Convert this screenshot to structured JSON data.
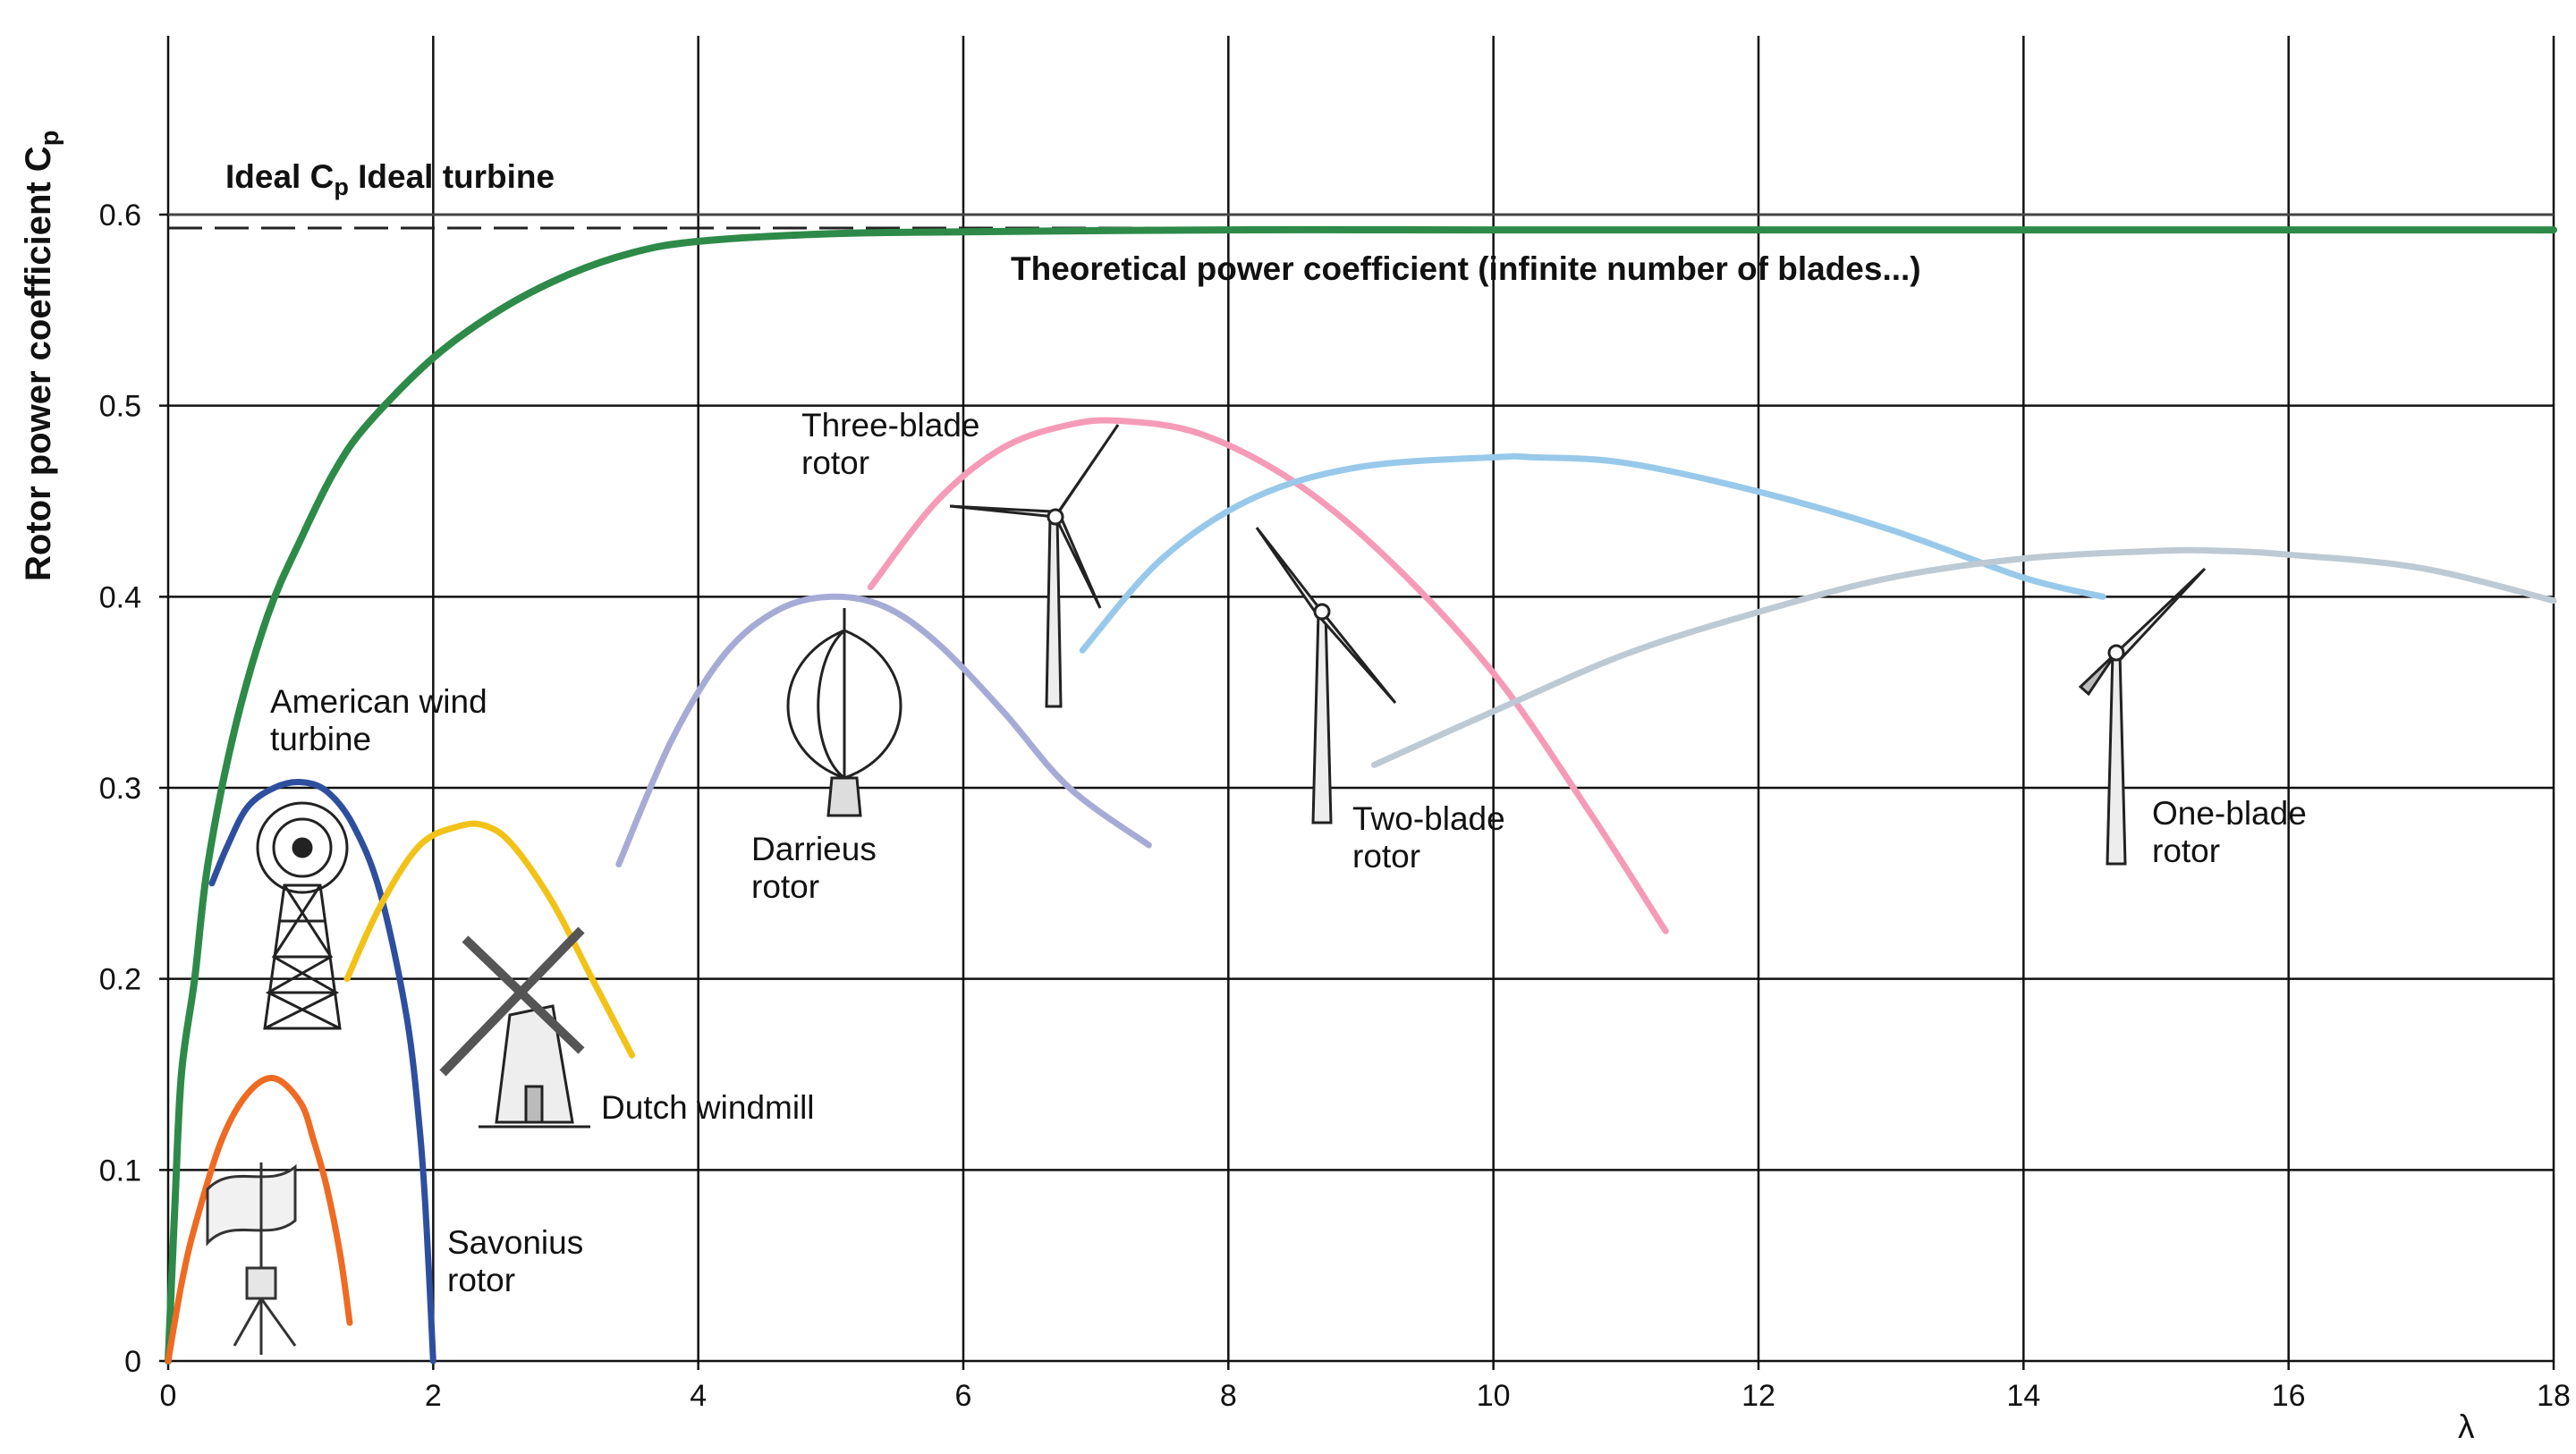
{
  "chart_data": {
    "type": "line",
    "xlabel": "λ",
    "ylabel": "Rotor power coefficient C",
    "ylabel_sub": "p",
    "xlim": [
      0,
      18
    ],
    "ylim": [
      0,
      0.6
    ],
    "x_ticks": [
      0,
      2,
      4,
      6,
      8,
      10,
      12,
      14,
      16,
      18
    ],
    "y_ticks": [
      0,
      0.1,
      0.2,
      0.3,
      0.4,
      0.5,
      0.6
    ],
    "y_tick_labels": [
      "0",
      "0.1",
      "0.2",
      "0.3",
      "0.4",
      "0.5",
      "0.6"
    ],
    "grid": true,
    "reference_lines": [
      {
        "y": 0.593,
        "style": "dashed",
        "color": "#222222"
      },
      {
        "y": 0.6,
        "style": "solid",
        "color": "#444444"
      }
    ],
    "annotations": {
      "ideal_prefix": "Ideal C",
      "ideal_sub": "p",
      "ideal_suffix": " Ideal turbine",
      "theoretical": "Theoretical power coefficient (infinite number of blades...)"
    },
    "series": [
      {
        "key": "theoretical",
        "color": "#2e8a48",
        "x": [
          0,
          0.05,
          0.1,
          0.2,
          0.3,
          0.5,
          0.75,
          1,
          1.25,
          1.5,
          2,
          2.5,
          3,
          3.5,
          4,
          5,
          6,
          8,
          10,
          12,
          14,
          16,
          18
        ],
        "y": [
          0,
          0.08,
          0.15,
          0.2,
          0.26,
          0.33,
          0.39,
          0.43,
          0.465,
          0.49,
          0.525,
          0.55,
          0.568,
          0.58,
          0.586,
          0.59,
          0.591,
          0.592,
          0.592,
          0.592,
          0.592,
          0.592,
          0.592
        ]
      },
      {
        "key": "savonius",
        "color": "#ef6a22",
        "x": [
          0,
          0.1,
          0.2,
          0.4,
          0.6,
          0.8,
          1.0,
          1.1,
          1.2,
          1.3,
          1.37
        ],
        "y": [
          0,
          0.04,
          0.07,
          0.115,
          0.14,
          0.148,
          0.135,
          0.115,
          0.09,
          0.055,
          0.02
        ]
      },
      {
        "key": "american",
        "color": "#2d4f9e",
        "x": [
          0.33,
          0.45,
          0.6,
          0.8,
          1.0,
          1.2,
          1.4,
          1.6,
          1.8,
          1.9,
          1.95,
          2.0
        ],
        "y": [
          0.25,
          0.27,
          0.29,
          0.3,
          0.303,
          0.298,
          0.28,
          0.245,
          0.18,
          0.12,
          0.07,
          0.0
        ]
      },
      {
        "key": "dutch",
        "color": "#f2c218",
        "x": [
          1.35,
          1.6,
          1.9,
          2.2,
          2.4,
          2.6,
          2.9,
          3.2,
          3.5
        ],
        "y": [
          0.2,
          0.238,
          0.27,
          0.28,
          0.28,
          0.27,
          0.24,
          0.2,
          0.16
        ]
      },
      {
        "key": "darrieus",
        "color": "#a6abd6",
        "x": [
          3.4,
          3.8,
          4.2,
          4.6,
          5.0,
          5.4,
          5.8,
          6.3,
          6.8,
          7.4
        ],
        "y": [
          0.26,
          0.325,
          0.37,
          0.393,
          0.4,
          0.395,
          0.376,
          0.34,
          0.3,
          0.27
        ]
      },
      {
        "key": "three_blade",
        "color": "#f59bb8",
        "x": [
          5.3,
          5.8,
          6.3,
          6.8,
          7.2,
          7.8,
          8.5,
          9.2,
          10.0,
          10.7,
          11.3
        ],
        "y": [
          0.405,
          0.45,
          0.478,
          0.49,
          0.492,
          0.485,
          0.46,
          0.42,
          0.36,
          0.29,
          0.225
        ]
      },
      {
        "key": "two_blade",
        "color": "#98c9ea",
        "x": [
          6.9,
          7.5,
          8.2,
          9.0,
          10.0,
          10.3,
          11.0,
          12.0,
          13.0,
          14.0,
          14.6
        ],
        "y": [
          0.372,
          0.42,
          0.452,
          0.468,
          0.473,
          0.473,
          0.47,
          0.455,
          0.435,
          0.41,
          0.4
        ]
      },
      {
        "key": "one_blade",
        "color": "#bdcad3",
        "x": [
          9.1,
          10.0,
          11.0,
          12.0,
          13.0,
          14.0,
          15.0,
          15.5,
          16.0,
          17.0,
          18.0
        ],
        "y": [
          0.312,
          0.34,
          0.37,
          0.392,
          0.41,
          0.42,
          0.424,
          0.424,
          0.422,
          0.415,
          0.398
        ]
      }
    ],
    "curve_labels": [
      {
        "key": "american",
        "lines": [
          "American wind",
          "turbine"
        ]
      },
      {
        "key": "savonius",
        "lines": [
          "Savonius",
          "rotor"
        ]
      },
      {
        "key": "dutch",
        "lines": [
          "Dutch windmill"
        ]
      },
      {
        "key": "darrieus",
        "lines": [
          "Darrieus",
          "rotor"
        ]
      },
      {
        "key": "three_blade",
        "lines": [
          "Three-blade",
          "rotor"
        ]
      },
      {
        "key": "two_blade",
        "lines": [
          "Two-blade",
          "rotor"
        ]
      },
      {
        "key": "one_blade",
        "lines": [
          "One-blade",
          "rotor"
        ]
      }
    ]
  }
}
